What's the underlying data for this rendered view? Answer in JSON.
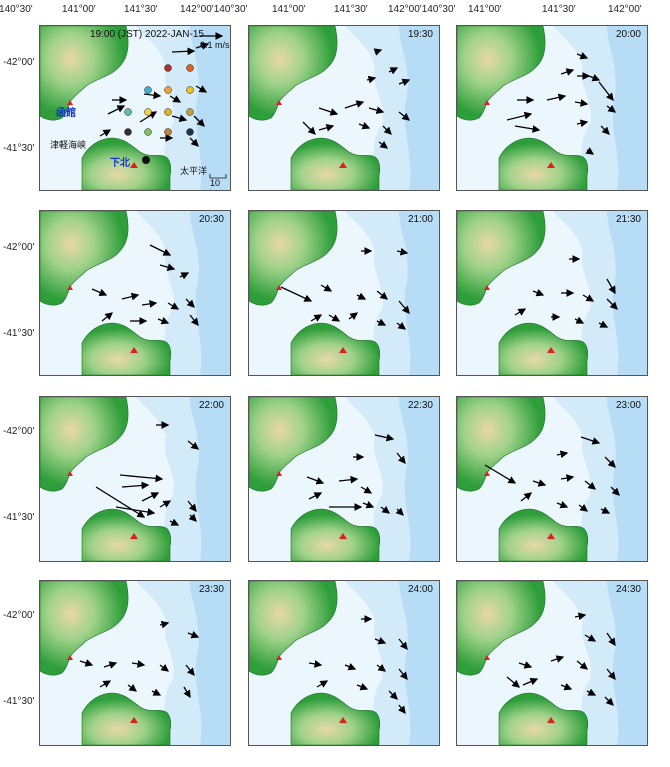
{
  "axes": {
    "top_labels": [
      "140°30'",
      "141°00'",
      "141°30'",
      "142°00'140°30'",
      "141°00'",
      "141°30'",
      "142°00'140°30'",
      "141°00'",
      "141°30'",
      "142°00'"
    ],
    "left_labels": [
      "-42°00'",
      "-41°30'",
      "-42°00'",
      "-41°30'",
      "-42°00'",
      "-41°30'",
      "-42°00'",
      "-41°30'"
    ]
  },
  "legend": {
    "velocity": "0.1 m/s",
    "distance": "10 km"
  },
  "places": {
    "hakodate": "函館",
    "tsugaru": "津軽海峡",
    "shimokita": "下北",
    "pacific": "太平洋"
  },
  "colors": {
    "sea_deep": "#b7dcf6",
    "sea_mid": "#d3eaf9",
    "sea_shallow": "#ecf6fd",
    "land_low": "#2e9e3a",
    "land_mid": "#9fd28a",
    "land_high": "#e8d8a8",
    "station_marker": "#e02020",
    "arrow": "#000000",
    "place_label": "#1430d8"
  },
  "panels": [
    {
      "time": "19:00 (JST) 2022-JAN-15",
      "arrows": [
        [
          132,
          26,
          22,
          -1
        ],
        [
          156,
          22,
          12,
          -4
        ],
        [
          72,
          74,
          14,
          0
        ],
        [
          104,
          68,
          16,
          2
        ],
        [
          130,
          70,
          10,
          6
        ],
        [
          156,
          60,
          10,
          6
        ],
        [
          68,
          88,
          16,
          -8
        ],
        [
          100,
          96,
          16,
          -10
        ],
        [
          132,
          90,
          14,
          4
        ],
        [
          154,
          90,
          10,
          10
        ],
        [
          60,
          110,
          10,
          -6
        ],
        [
          120,
          112,
          12,
          0
        ],
        [
          150,
          112,
          8,
          8
        ]
      ]
    },
    {
      "time": "19:30",
      "arrows": [
        [
          126,
          26,
          6,
          -2
        ],
        [
          140,
          46,
          8,
          -4
        ],
        [
          118,
          54,
          8,
          -2
        ],
        [
          150,
          58,
          10,
          -4
        ],
        [
          70,
          82,
          18,
          6
        ],
        [
          96,
          82,
          18,
          -6
        ],
        [
          120,
          82,
          14,
          4
        ],
        [
          150,
          86,
          10,
          8
        ],
        [
          54,
          96,
          12,
          12
        ],
        [
          70,
          104,
          14,
          -4
        ],
        [
          110,
          98,
          10,
          4
        ],
        [
          134,
          100,
          8,
          8
        ],
        [
          130,
          116,
          8,
          6
        ]
      ]
    },
    {
      "time": "20:00",
      "arrows": [
        [
          120,
          28,
          10,
          4
        ],
        [
          104,
          48,
          12,
          -4
        ],
        [
          120,
          50,
          12,
          0
        ],
        [
          132,
          50,
          10,
          4
        ],
        [
          142,
          56,
          14,
          18
        ],
        [
          60,
          74,
          16,
          0
        ],
        [
          90,
          74,
          18,
          -4
        ],
        [
          118,
          76,
          12,
          2
        ],
        [
          150,
          80,
          8,
          6
        ],
        [
          50,
          94,
          24,
          -6
        ],
        [
          58,
          100,
          24,
          4
        ],
        [
          120,
          98,
          10,
          -2
        ],
        [
          144,
          100,
          8,
          8
        ],
        [
          130,
          124,
          6,
          4
        ]
      ]
    },
    {
      "time": "20:30",
      "arrows": [
        [
          110,
          34,
          20,
          10
        ],
        [
          120,
          54,
          14,
          4
        ],
        [
          140,
          66,
          8,
          -4
        ],
        [
          52,
          78,
          14,
          6
        ],
        [
          82,
          88,
          16,
          -4
        ],
        [
          102,
          94,
          14,
          -2
        ],
        [
          128,
          92,
          10,
          6
        ],
        [
          146,
          88,
          8,
          8
        ],
        [
          62,
          110,
          10,
          -8
        ],
        [
          90,
          110,
          16,
          0
        ],
        [
          118,
          108,
          10,
          4
        ],
        [
          150,
          104,
          8,
          10
        ]
      ]
    },
    {
      "time": "21:00",
      "arrows": [
        [
          112,
          40,
          10,
          0
        ],
        [
          148,
          40,
          10,
          2
        ],
        [
          32,
          76,
          30,
          14
        ],
        [
          72,
          74,
          10,
          6
        ],
        [
          108,
          84,
          8,
          4
        ],
        [
          128,
          80,
          10,
          8
        ],
        [
          150,
          90,
          10,
          12
        ],
        [
          62,
          110,
          10,
          -6
        ],
        [
          80,
          104,
          10,
          6
        ],
        [
          100,
          108,
          8,
          -6
        ],
        [
          128,
          110,
          8,
          4
        ],
        [
          148,
          112,
          8,
          6
        ]
      ]
    },
    {
      "time": "21:30",
      "arrows": [
        [
          112,
          48,
          10,
          0
        ],
        [
          150,
          68,
          8,
          14
        ],
        [
          76,
          80,
          10,
          4
        ],
        [
          104,
          82,
          12,
          0
        ],
        [
          126,
          84,
          10,
          6
        ],
        [
          150,
          88,
          10,
          10
        ],
        [
          58,
          104,
          10,
          -6
        ],
        [
          94,
          106,
          8,
          0
        ],
        [
          118,
          108,
          8,
          4
        ],
        [
          142,
          112,
          8,
          4
        ]
      ]
    },
    {
      "time": "22:00",
      "arrows": [
        [
          116,
          28,
          12,
          0
        ],
        [
          148,
          44,
          10,
          8
        ],
        [
          80,
          78,
          42,
          4
        ],
        [
          82,
          90,
          26,
          -2
        ],
        [
          102,
          104,
          16,
          -8
        ],
        [
          56,
          90,
          48,
          30
        ],
        [
          76,
          110,
          38,
          6
        ],
        [
          120,
          110,
          10,
          -6
        ],
        [
          148,
          104,
          8,
          10
        ],
        [
          130,
          124,
          8,
          4
        ],
        [
          150,
          118,
          6,
          6
        ]
      ]
    },
    {
      "time": "22:30",
      "arrows": [
        [
          126,
          38,
          18,
          4
        ],
        [
          148,
          56,
          8,
          10
        ],
        [
          104,
          60,
          10,
          0
        ],
        [
          58,
          80,
          16,
          6
        ],
        [
          90,
          84,
          18,
          -2
        ],
        [
          112,
          90,
          10,
          6
        ],
        [
          60,
          102,
          12,
          -6
        ],
        [
          80,
          110,
          32,
          0
        ],
        [
          114,
          106,
          10,
          4
        ],
        [
          132,
          110,
          8,
          6
        ],
        [
          148,
          112,
          6,
          6
        ]
      ]
    },
    {
      "time": "23:00",
      "arrows": [
        [
          124,
          40,
          18,
          6
        ],
        [
          148,
          60,
          10,
          10
        ],
        [
          100,
          58,
          10,
          -2
        ],
        [
          28,
          68,
          30,
          18
        ],
        [
          76,
          84,
          12,
          4
        ],
        [
          104,
          82,
          12,
          -2
        ],
        [
          128,
          84,
          10,
          8
        ],
        [
          154,
          90,
          8,
          8
        ],
        [
          64,
          104,
          10,
          -8
        ],
        [
          100,
          106,
          10,
          4
        ],
        [
          122,
          108,
          8,
          6
        ],
        [
          144,
          112,
          8,
          4
        ]
      ]
    },
    {
      "time": "23:30",
      "arrows": [
        [
          120,
          44,
          8,
          -2
        ],
        [
          148,
          52,
          10,
          4
        ],
        [
          40,
          80,
          12,
          4
        ],
        [
          64,
          86,
          12,
          -4
        ],
        [
          92,
          82,
          12,
          2
        ],
        [
          120,
          84,
          8,
          6
        ],
        [
          146,
          84,
          8,
          10
        ],
        [
          60,
          106,
          10,
          -6
        ],
        [
          88,
          104,
          8,
          6
        ],
        [
          112,
          110,
          8,
          4
        ],
        [
          144,
          106,
          6,
          10
        ]
      ]
    },
    {
      "time": "24:00",
      "arrows": [
        [
          112,
          38,
          10,
          0
        ],
        [
          126,
          58,
          10,
          4
        ],
        [
          150,
          58,
          8,
          10
        ],
        [
          60,
          82,
          12,
          2
        ],
        [
          96,
          84,
          10,
          4
        ],
        [
          128,
          84,
          8,
          6
        ],
        [
          150,
          88,
          8,
          10
        ],
        [
          68,
          106,
          10,
          -6
        ],
        [
          108,
          104,
          10,
          4
        ],
        [
          140,
          110,
          8,
          8
        ],
        [
          150,
          124,
          6,
          8
        ]
      ]
    },
    {
      "time": "24:30",
      "arrows": [
        [
          118,
          36,
          10,
          -2
        ],
        [
          128,
          54,
          10,
          6
        ],
        [
          150,
          52,
          8,
          12
        ],
        [
          62,
          82,
          12,
          4
        ],
        [
          94,
          80,
          12,
          -4
        ],
        [
          120,
          80,
          10,
          8
        ],
        [
          150,
          88,
          8,
          10
        ],
        [
          50,
          96,
          12,
          10
        ],
        [
          66,
          104,
          14,
          -6
        ],
        [
          104,
          104,
          10,
          4
        ],
        [
          130,
          110,
          8,
          4
        ],
        [
          148,
          116,
          8,
          8
        ]
      ]
    }
  ]
}
